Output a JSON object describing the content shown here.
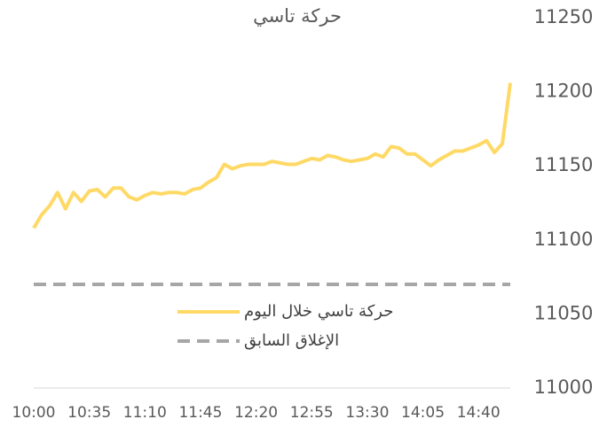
{
  "chart_data": {
    "type": "line",
    "title": "حركة تاسي",
    "categories": [
      "10:00",
      null,
      null,
      null,
      null,
      null,
      null,
      "10:35",
      null,
      null,
      null,
      null,
      null,
      null,
      "11:10",
      null,
      null,
      null,
      null,
      null,
      null,
      "11:45",
      null,
      null,
      null,
      null,
      null,
      null,
      "12:20",
      null,
      null,
      null,
      null,
      null,
      null,
      "12:55",
      null,
      null,
      null,
      null,
      null,
      null,
      "13:30",
      null,
      null,
      null,
      null,
      null,
      null,
      "14:05",
      null,
      null,
      null,
      null,
      null,
      null,
      "14:40",
      null,
      null,
      null,
      null
    ],
    "series": [
      {
        "name": "حركة تاسي خلال اليوم",
        "color": "#ffd966",
        "values": [
          11108,
          11117,
          11123,
          11132,
          11121,
          11132,
          11126,
          11133,
          11134,
          11129,
          11135,
          11135,
          11129,
          11127,
          11130,
          11132,
          11131,
          11132,
          11132,
          11131,
          11134,
          11135,
          11139,
          11142,
          11151,
          11148,
          11150,
          11151,
          11151,
          11151,
          11153,
          11152,
          11151,
          11151,
          11153,
          11155,
          11154,
          11157,
          11156,
          11154,
          11153,
          11154,
          11155,
          11158,
          11156,
          11163,
          11162,
          11158,
          11158,
          11154,
          11150,
          11154,
          11157,
          11160,
          11160,
          11162,
          11164,
          11167,
          11159,
          11165,
          11206
        ]
      },
      {
        "name": "الإغلاق السابق",
        "color": "#a6a6a6",
        "dashed": true,
        "values": [
          11070,
          11070,
          11070,
          11070,
          11070,
          11070,
          11070,
          11070,
          11070,
          11070,
          11070,
          11070,
          11070,
          11070,
          11070,
          11070,
          11070,
          11070,
          11070,
          11070,
          11070,
          11070,
          11070,
          11070,
          11070,
          11070,
          11070,
          11070,
          11070,
          11070,
          11070,
          11070,
          11070,
          11070,
          11070,
          11070,
          11070,
          11070,
          11070,
          11070,
          11070,
          11070,
          11070,
          11070,
          11070,
          11070,
          11070,
          11070,
          11070,
          11070,
          11070,
          11070,
          11070,
          11070,
          11070,
          11070,
          11070,
          11070,
          11070,
          11070,
          11070
        ]
      }
    ],
    "ylim": [
      11000,
      11250
    ],
    "yticks": [
      11000,
      11050,
      11100,
      11150,
      11200,
      11250
    ],
    "y_axis_side": "right",
    "grid": false
  }
}
